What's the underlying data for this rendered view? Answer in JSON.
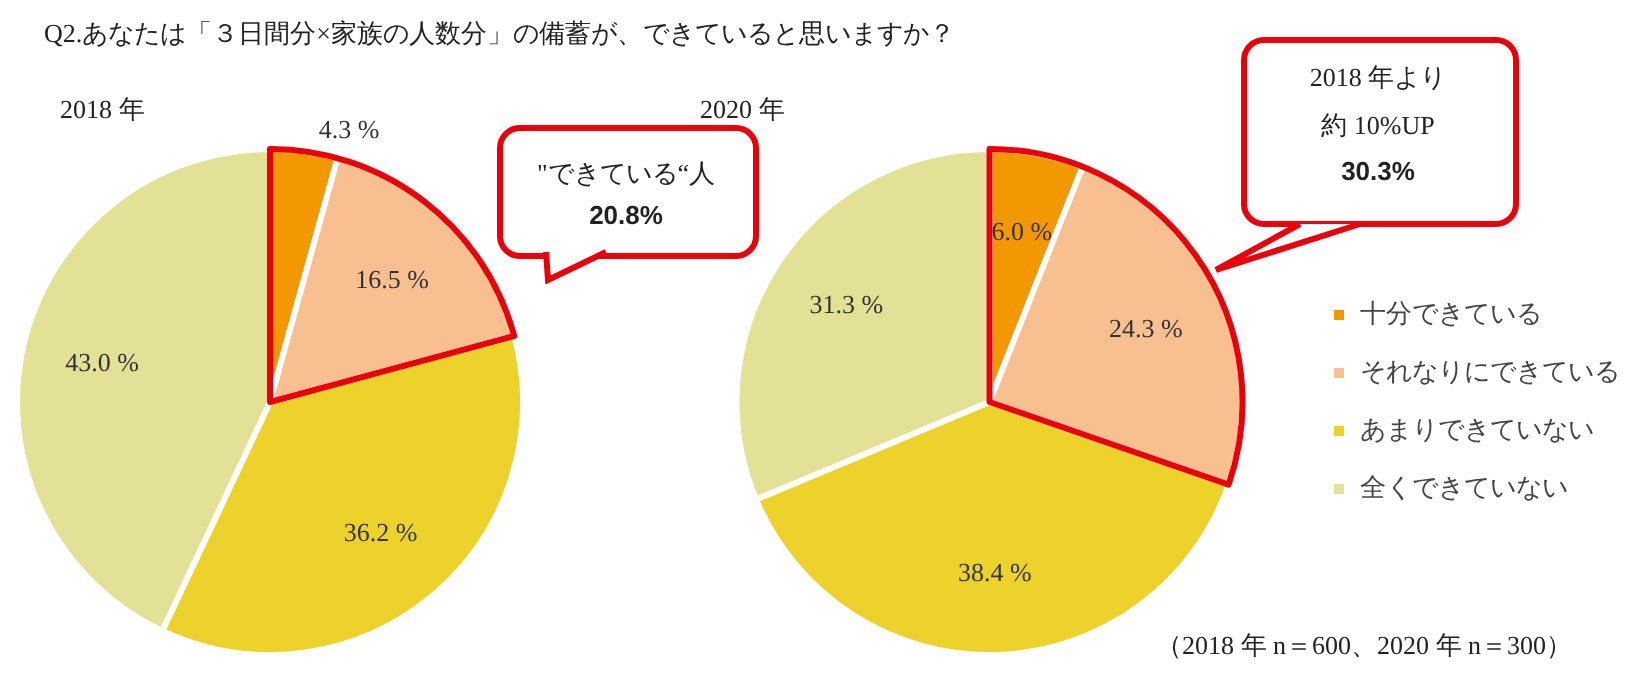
{
  "chart_data": [
    {
      "type": "pie",
      "title": "Q2.あなたは「３日間分×家族の人数分」の備蓄が、できていると思いますか？",
      "subtitle": "2018 年",
      "categories": [
        null,
        null,
        null,
        null
      ],
      "values": [
        4.3,
        16.5,
        36.2,
        43.0
      ],
      "value_labels": [
        "4.3 %",
        "16.5 %",
        "36.2 %",
        "43.0 %"
      ],
      "colors": [
        "#f39800",
        "#f8c090",
        "#ecd22a",
        "#e3e196"
      ],
      "legend": false,
      "annotations": [
        "\"できている“人",
        "20.8%"
      ]
    },
    {
      "type": "pie",
      "subtitle": "2020 年",
      "categories": [
        "十分できている",
        "それなりにできている",
        "あまりできていない",
        "全くできていない"
      ],
      "values": [
        6.0,
        24.3,
        38.4,
        31.3
      ],
      "value_labels": [
        "6.0 %",
        "24.3 %",
        "38.4 %",
        "31.3 %"
      ],
      "colors": [
        "#f39800",
        "#f8c090",
        "#ecd22a",
        "#e3e196"
      ],
      "legend": "right",
      "annotations": [
        "2018 年より",
        "約 10%UP",
        "30.3%",
        "（2018 年 n＝600、2020 年 n＝300）"
      ]
    }
  ]
}
